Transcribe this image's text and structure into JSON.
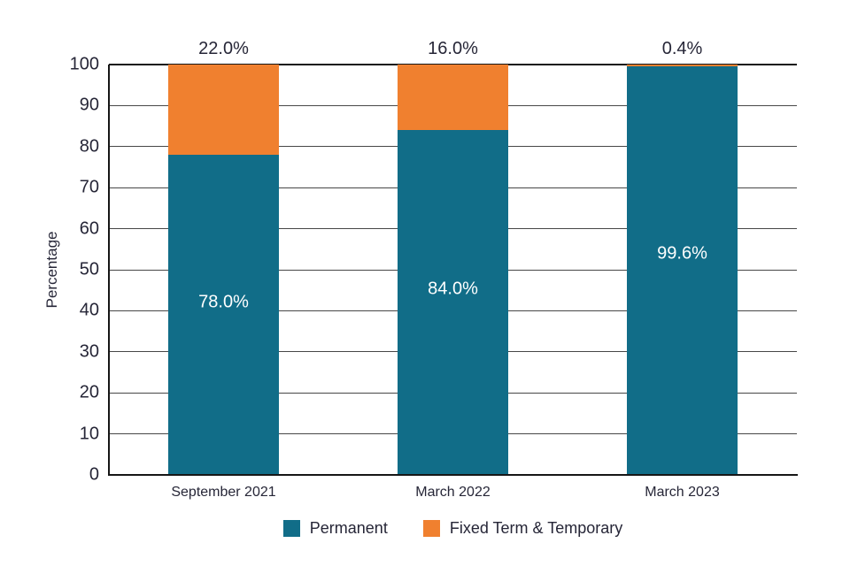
{
  "chart_data": {
    "type": "bar",
    "stacked": true,
    "orientation": "vertical",
    "title": "",
    "xlabel": "",
    "ylabel": "Percentage",
    "ylim": [
      0,
      100
    ],
    "yticks": [
      0,
      10,
      20,
      30,
      40,
      50,
      60,
      70,
      80,
      90,
      100
    ],
    "grid": "horizontal",
    "legend_position": "bottom-center",
    "categories": [
      "September 2021",
      "March 2022",
      "March 2023"
    ],
    "series": [
      {
        "name": "Permanent",
        "color": "#116d88",
        "values": [
          78.0,
          84.0,
          99.6
        ],
        "labels": [
          "78.0%",
          "84.0%",
          "99.6%"
        ],
        "label_placement": "inside",
        "label_color": "#ffffff"
      },
      {
        "name": "Fixed Term & Temporary",
        "color": "#f0802f",
        "values": [
          22.0,
          16.0,
          0.4
        ],
        "labels": [
          "22.0%",
          "16.0%",
          "0.4%"
        ],
        "label_placement": "above-bar",
        "label_color": "#262637"
      }
    ]
  },
  "colors": {
    "permanent": "#116d88",
    "fixed_term_temporary": "#f0802f",
    "text_dark": "#262637",
    "gridline": "#474747",
    "axis_spine": "#161616",
    "background": "#ffffff"
  }
}
